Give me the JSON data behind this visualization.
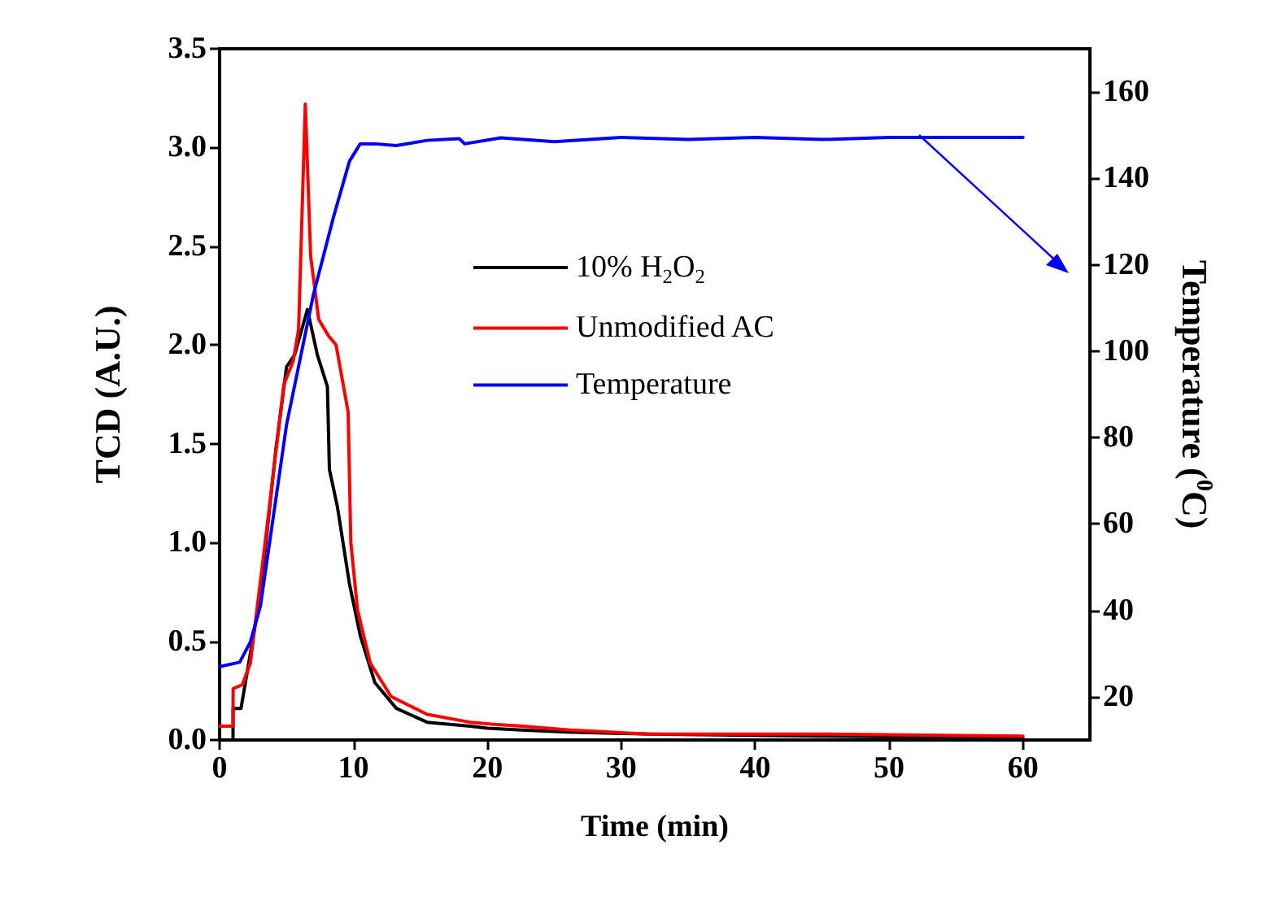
{
  "chart_data": {
    "type": "line",
    "xlabel": "Time (min)",
    "ylabel": "TCD (A.U.)",
    "y2label": "Temperature ($^{0}$C)",
    "xlim": [
      0,
      65
    ],
    "xticks": [
      0,
      10,
      20,
      30,
      40,
      50,
      60
    ],
    "ylim": [
      0,
      3.5
    ],
    "yticks": [
      {
        "value": 0,
        "label": "0.0"
      },
      0.5,
      {
        "value": 1,
        "label": "1.0"
      },
      1.5,
      {
        "value": 2,
        "label": "2.0"
      },
      2.5,
      {
        "value": 3,
        "label": "3.0"
      },
      3.5
    ],
    "y2lim": [
      10,
      170
    ],
    "y2ticks": [
      20,
      40,
      60,
      80,
      100,
      120,
      140,
      160
    ],
    "legend": "top",
    "grid": false,
    "line_style": "solid",
    "series": [
      {
        "name": "10% H$_{2}$O$_{2}$",
        "color": "#000000",
        "x": [
          0,
          1.0,
          1.01,
          1.6,
          3.05,
          4.2,
          5,
          5.6,
          6.56,
          7.3,
          8.05,
          8.2,
          8.8,
          9.7,
          10.5,
          11.6,
          13.2,
          15.5,
          18.7,
          20,
          22.6,
          26,
          32,
          45,
          60
        ],
        "values": [
          0,
          0,
          0.16,
          0.16,
          0.74,
          1.47,
          1.89,
          1.95,
          2.18,
          1.95,
          1.79,
          1.37,
          1.18,
          0.79,
          0.53,
          0.29,
          0.16,
          0.09,
          0.07,
          0.06,
          0.05,
          0.04,
          0.03,
          0.02,
          0.01
        ]
      },
      {
        "name": "Unmodified AC",
        "color": "#ff0000",
        "x": [
          0,
          1.0,
          1.01,
          1.7,
          2.3,
          3.4,
          4.8,
          5.5,
          5.9,
          6.4,
          6.8,
          7.4,
          8.1,
          8.7,
          9.6,
          9.8,
          10.3,
          11.25,
          12.8,
          15.5,
          18.7,
          20.3,
          22.6,
          26.2,
          32.1,
          45,
          60
        ],
        "values": [
          0.07,
          0.07,
          0.26,
          0.28,
          0.39,
          1.0,
          1.8,
          1.92,
          2.08,
          3.22,
          2.45,
          2.13,
          2.05,
          2.0,
          1.66,
          1.0,
          0.66,
          0.39,
          0.22,
          0.13,
          0.09,
          0.08,
          0.07,
          0.05,
          0.03,
          0.03,
          0.02
        ]
      },
      {
        "name": "Temperature",
        "color": "#0000ff",
        "axis": "y2",
        "x": [
          0,
          1.5,
          2.3,
          3.05,
          5,
          7,
          8.5,
          9.7,
          10.5,
          11.6,
          13.2,
          15.5,
          17.9,
          18.3,
          21,
          25,
          30,
          35,
          40,
          45,
          50,
          55,
          60
        ],
        "values": [
          27,
          28,
          32.7,
          41,
          83,
          113,
          131,
          144,
          148,
          148,
          147.6,
          148.8,
          149.2,
          148,
          149.4,
          148.5,
          149.5,
          149,
          149.5,
          149,
          149.5,
          149.5,
          149.5
        ]
      }
    ]
  }
}
